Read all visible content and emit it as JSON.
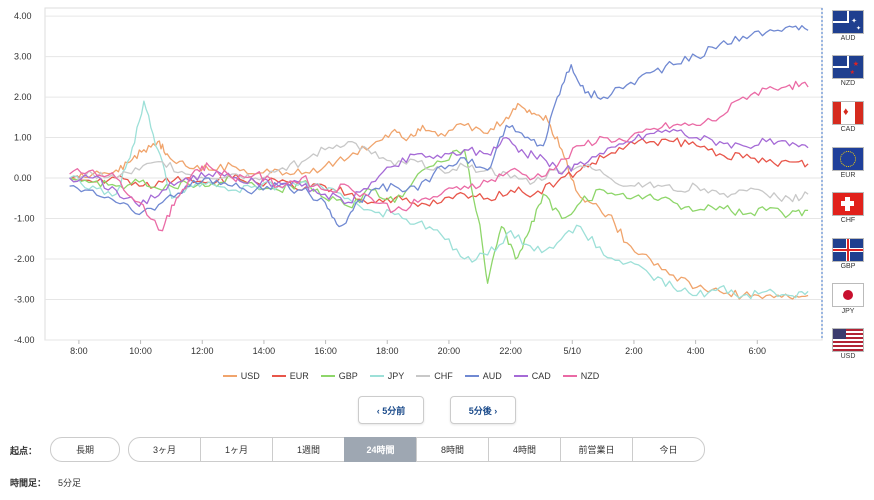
{
  "chart_data": {
    "type": "line",
    "y_ticks": [
      "4.00",
      "3.00",
      "2.00",
      "1.00",
      "0.00",
      "-1.00",
      "-2.00",
      "-3.00",
      "-4.00"
    ],
    "ylim": [
      -4,
      4.2
    ],
    "x_ticks": [
      "8:00",
      "10:00",
      "12:00",
      "14:00",
      "16:00",
      "18:00",
      "20:00",
      "22:00",
      "5/10",
      "2:00",
      "4:00",
      "6:00"
    ],
    "series": [
      {
        "name": "USD",
        "color": "#f0a46c",
        "points": [
          [
            0,
            0.0
          ],
          [
            0.5,
            0.1
          ],
          [
            1.0,
            0.2
          ],
          [
            1.3,
            0.4
          ],
          [
            1.6,
            0.7
          ],
          [
            1.9,
            0.9
          ],
          [
            2.1,
            0.6
          ],
          [
            2.5,
            0.3
          ],
          [
            3.0,
            0.2
          ],
          [
            3.5,
            0.3
          ],
          [
            4.0,
            0.1
          ],
          [
            4.5,
            0.2
          ],
          [
            5.0,
            0.1
          ],
          [
            5.5,
            0.3
          ],
          [
            6.0,
            0.5
          ],
          [
            6.6,
            0.9
          ],
          [
            7.0,
            1.2
          ],
          [
            7.3,
            1.0
          ],
          [
            7.6,
            1.3
          ],
          [
            8.0,
            1.1
          ],
          [
            8.5,
            1.3
          ],
          [
            9.0,
            1.1
          ],
          [
            9.4,
            1.5
          ],
          [
            9.7,
            1.8
          ],
          [
            10.0,
            1.6
          ],
          [
            10.3,
            1.4
          ],
          [
            10.6,
            0.7
          ],
          [
            10.9,
            -0.3
          ],
          [
            11.2,
            -0.6
          ],
          [
            11.6,
            -0.9
          ],
          [
            12.0,
            -1.6
          ],
          [
            12.5,
            -2.0
          ],
          [
            13.0,
            -2.4
          ],
          [
            13.5,
            -2.7
          ],
          [
            14.0,
            -2.8
          ],
          [
            14.5,
            -2.9
          ],
          [
            15.0,
            -2.9
          ],
          [
            15.5,
            -2.95
          ],
          [
            15.9,
            -2.9
          ]
        ]
      },
      {
        "name": "EUR",
        "color": "#e8564a",
        "points": [
          [
            0,
            0.0
          ],
          [
            0.5,
            -0.1
          ],
          [
            1.0,
            0.0
          ],
          [
            1.5,
            -0.2
          ],
          [
            2.0,
            -0.1
          ],
          [
            2.5,
            0.0
          ],
          [
            3.0,
            -0.1
          ],
          [
            3.5,
            0.0
          ],
          [
            4.0,
            -0.1
          ],
          [
            4.5,
            -0.1
          ],
          [
            5.0,
            -0.3
          ],
          [
            5.5,
            -0.2
          ],
          [
            6.0,
            -0.4
          ],
          [
            6.5,
            -0.6
          ],
          [
            7.0,
            -0.5
          ],
          [
            7.5,
            -0.7
          ],
          [
            8.0,
            -0.6
          ],
          [
            8.5,
            -0.4
          ],
          [
            9.0,
            -0.5
          ],
          [
            9.5,
            -0.3
          ],
          [
            10.0,
            -0.4
          ],
          [
            10.5,
            -0.1
          ],
          [
            11.0,
            0.2
          ],
          [
            11.5,
            0.5
          ],
          [
            12.0,
            0.8
          ],
          [
            12.5,
            0.9
          ],
          [
            13.0,
            0.9
          ],
          [
            13.5,
            0.8
          ],
          [
            14.0,
            0.6
          ],
          [
            14.5,
            0.5
          ],
          [
            15.0,
            0.4
          ],
          [
            15.5,
            0.4
          ],
          [
            15.9,
            0.35
          ]
        ]
      },
      {
        "name": "GBP",
        "color": "#8ed66a",
        "points": [
          [
            0,
            0.0
          ],
          [
            0.5,
            -0.1
          ],
          [
            1.0,
            -0.2
          ],
          [
            1.5,
            -0.1
          ],
          [
            2.0,
            -0.3
          ],
          [
            2.5,
            -0.1
          ],
          [
            3.0,
            -0.2
          ],
          [
            3.5,
            0.0
          ],
          [
            4.0,
            -0.2
          ],
          [
            4.5,
            -0.3
          ],
          [
            5.0,
            -0.1
          ],
          [
            5.5,
            -0.5
          ],
          [
            6.0,
            -0.7
          ],
          [
            6.5,
            -0.3
          ],
          [
            7.0,
            -0.6
          ],
          [
            7.5,
            0.1
          ],
          [
            8.0,
            0.4
          ],
          [
            8.5,
            0.7
          ],
          [
            8.8,
            -1.0
          ],
          [
            9.0,
            -2.6
          ],
          [
            9.3,
            -1.2
          ],
          [
            9.6,
            -2.0
          ],
          [
            9.9,
            -1.3
          ],
          [
            10.2,
            -0.4
          ],
          [
            10.6,
            -1.0
          ],
          [
            11.0,
            -0.6
          ],
          [
            11.5,
            -0.3
          ],
          [
            12.0,
            -0.5
          ],
          [
            12.5,
            -0.4
          ],
          [
            13.0,
            -0.6
          ],
          [
            13.5,
            -0.8
          ],
          [
            14.0,
            -0.7
          ],
          [
            14.5,
            -0.9
          ],
          [
            15.0,
            -0.8
          ],
          [
            15.5,
            -0.9
          ],
          [
            15.9,
            -0.8
          ]
        ]
      },
      {
        "name": "JPY",
        "color": "#9de0d8",
        "points": [
          [
            0,
            0.0
          ],
          [
            0.5,
            -0.2
          ],
          [
            1.0,
            -0.4
          ],
          [
            1.3,
            0.5
          ],
          [
            1.6,
            1.9
          ],
          [
            1.9,
            0.7
          ],
          [
            2.2,
            -0.5
          ],
          [
            2.6,
            -0.2
          ],
          [
            3.0,
            -0.1
          ],
          [
            3.5,
            -0.3
          ],
          [
            4.0,
            -0.2
          ],
          [
            4.5,
            -0.2
          ],
          [
            5.0,
            -0.1
          ],
          [
            5.5,
            -0.3
          ],
          [
            6.0,
            -0.5
          ],
          [
            6.5,
            -0.8
          ],
          [
            7.0,
            -0.9
          ],
          [
            7.5,
            -1.1
          ],
          [
            8.0,
            -1.4
          ],
          [
            8.5,
            -2.0
          ],
          [
            9.0,
            -1.9
          ],
          [
            9.5,
            -1.3
          ],
          [
            10.0,
            -1.8
          ],
          [
            10.5,
            -1.6
          ],
          [
            11.0,
            -1.2
          ],
          [
            11.5,
            -1.9
          ],
          [
            12.0,
            -2.1
          ],
          [
            12.5,
            -2.4
          ],
          [
            13.0,
            -2.7
          ],
          [
            13.5,
            -2.9
          ],
          [
            14.0,
            -2.7
          ],
          [
            14.5,
            -2.9
          ],
          [
            15.0,
            -2.8
          ],
          [
            15.5,
            -2.9
          ],
          [
            15.9,
            -2.8
          ]
        ]
      },
      {
        "name": "CHF",
        "color": "#c8c8c8",
        "points": [
          [
            0,
            0.0
          ],
          [
            0.5,
            0.1
          ],
          [
            1.0,
            0.0
          ],
          [
            1.5,
            0.2
          ],
          [
            2.0,
            0.4
          ],
          [
            2.5,
            0.1
          ],
          [
            3.0,
            0.0
          ],
          [
            3.5,
            0.1
          ],
          [
            4.0,
            0.0
          ],
          [
            4.5,
            0.2
          ],
          [
            5.0,
            0.4
          ],
          [
            5.5,
            0.7
          ],
          [
            6.0,
            0.9
          ],
          [
            6.5,
            0.6
          ],
          [
            7.0,
            0.3
          ],
          [
            7.5,
            0.4
          ],
          [
            8.0,
            0.2
          ],
          [
            8.5,
            0.3
          ],
          [
            9.0,
            0.2
          ],
          [
            9.5,
            0.0
          ],
          [
            10.0,
            -0.1
          ],
          [
            10.5,
            0.2
          ],
          [
            11.0,
            0.3
          ],
          [
            11.5,
            0.1
          ],
          [
            12.0,
            -0.2
          ],
          [
            12.5,
            -0.1
          ],
          [
            13.0,
            -0.3
          ],
          [
            13.5,
            -0.2
          ],
          [
            14.0,
            -0.4
          ],
          [
            14.5,
            -0.3
          ],
          [
            15.0,
            -0.4
          ],
          [
            15.5,
            -0.5
          ],
          [
            15.9,
            -0.4
          ]
        ]
      },
      {
        "name": "AUD",
        "color": "#7089d2",
        "points": [
          [
            0,
            -0.2
          ],
          [
            0.5,
            -0.3
          ],
          [
            1.0,
            -0.6
          ],
          [
            1.5,
            -0.9
          ],
          [
            2.0,
            -0.6
          ],
          [
            2.5,
            -0.2
          ],
          [
            3.0,
            0.0
          ],
          [
            3.5,
            -0.2
          ],
          [
            4.0,
            -0.3
          ],
          [
            4.5,
            -0.2
          ],
          [
            5.0,
            -0.3
          ],
          [
            5.5,
            -0.6
          ],
          [
            5.8,
            -1.2
          ],
          [
            6.1,
            -0.8
          ],
          [
            6.5,
            -0.3
          ],
          [
            7.0,
            -0.2
          ],
          [
            7.5,
            -0.3
          ],
          [
            8.0,
            0.3
          ],
          [
            8.5,
            0.5
          ],
          [
            9.0,
            0.2
          ],
          [
            9.4,
            1.3
          ],
          [
            9.8,
            1.0
          ],
          [
            10.2,
            0.8
          ],
          [
            10.5,
            2.0
          ],
          [
            10.8,
            2.8
          ],
          [
            11.1,
            2.1
          ],
          [
            11.5,
            2.0
          ],
          [
            12.0,
            2.3
          ],
          [
            12.5,
            2.6
          ],
          [
            13.0,
            2.8
          ],
          [
            13.5,
            3.0
          ],
          [
            14.0,
            3.3
          ],
          [
            14.5,
            3.5
          ],
          [
            15.0,
            3.6
          ],
          [
            15.5,
            3.75
          ],
          [
            15.9,
            3.65
          ]
        ]
      },
      {
        "name": "CAD",
        "color": "#a56ad6",
        "points": [
          [
            0,
            0.0
          ],
          [
            0.5,
            0.0
          ],
          [
            1.0,
            -0.3
          ],
          [
            1.5,
            -0.7
          ],
          [
            2.0,
            -0.3
          ],
          [
            2.5,
            0.0
          ],
          [
            3.0,
            0.1
          ],
          [
            3.5,
            0.0
          ],
          [
            4.0,
            -0.1
          ],
          [
            4.5,
            -0.1
          ],
          [
            5.0,
            -0.2
          ],
          [
            5.5,
            -0.4
          ],
          [
            6.0,
            -0.6
          ],
          [
            6.5,
            -0.1
          ],
          [
            7.0,
            0.3
          ],
          [
            7.5,
            0.6
          ],
          [
            8.0,
            0.5
          ],
          [
            8.5,
            0.7
          ],
          [
            9.0,
            0.6
          ],
          [
            9.4,
            1.0
          ],
          [
            9.8,
            0.6
          ],
          [
            10.2,
            0.5
          ],
          [
            10.6,
            0.1
          ],
          [
            11.0,
            0.4
          ],
          [
            11.5,
            0.6
          ],
          [
            12.0,
            0.9
          ],
          [
            12.5,
            1.1
          ],
          [
            13.0,
            1.2
          ],
          [
            13.5,
            1.0
          ],
          [
            14.0,
            0.9
          ],
          [
            14.5,
            0.8
          ],
          [
            15.0,
            0.9
          ],
          [
            15.5,
            0.8
          ],
          [
            15.9,
            0.75
          ]
        ]
      },
      {
        "name": "NZD",
        "color": "#ea6aa5",
        "points": [
          [
            0,
            0.1
          ],
          [
            0.5,
            0.2
          ],
          [
            1.0,
            0.0
          ],
          [
            1.5,
            -0.6
          ],
          [
            2.0,
            -1.3
          ],
          [
            2.3,
            -0.5
          ],
          [
            2.7,
            0.2
          ],
          [
            3.0,
            0.3
          ],
          [
            3.5,
            0.0
          ],
          [
            4.0,
            0.1
          ],
          [
            4.5,
            -0.2
          ],
          [
            5.0,
            0.0
          ],
          [
            5.5,
            -0.3
          ],
          [
            6.0,
            -0.2
          ],
          [
            6.5,
            -0.5
          ],
          [
            7.0,
            -0.8
          ],
          [
            7.5,
            -0.6
          ],
          [
            8.0,
            -0.4
          ],
          [
            8.5,
            -0.2
          ],
          [
            9.0,
            -0.1
          ],
          [
            9.5,
            0.2
          ],
          [
            10.0,
            0.0
          ],
          [
            10.5,
            0.3
          ],
          [
            11.0,
            0.8
          ],
          [
            11.5,
            1.0
          ],
          [
            12.0,
            0.9
          ],
          [
            12.5,
            1.2
          ],
          [
            13.0,
            1.3
          ],
          [
            13.5,
            1.3
          ],
          [
            14.0,
            1.5
          ],
          [
            14.5,
            2.0
          ],
          [
            15.0,
            2.2
          ],
          [
            15.5,
            2.3
          ],
          [
            15.9,
            2.25
          ]
        ]
      }
    ]
  },
  "flags": [
    {
      "code": "AUD",
      "y": 3.65
    },
    {
      "code": "NZD",
      "y": 2.25
    },
    {
      "code": "CAD",
      "y": 0.75
    },
    {
      "code": "EUR",
      "y": 0.35
    },
    {
      "code": "CHF",
      "y": -0.4
    },
    {
      "code": "GBP",
      "y": -0.8
    },
    {
      "code": "JPY",
      "y": -2.8
    },
    {
      "code": "USD",
      "y": -2.9
    }
  ],
  "nav": {
    "prev": "‹ 5分前",
    "next": "5分後 ›"
  },
  "period": {
    "label": "起点：",
    "long": "長期",
    "options": [
      "3ヶ月",
      "1ヶ月",
      "1週間",
      "24時間",
      "8時間",
      "4時間",
      "前営業日",
      "今日"
    ],
    "active": "24時間"
  },
  "timeframe": {
    "label": "時間足：",
    "value": "5分足"
  }
}
